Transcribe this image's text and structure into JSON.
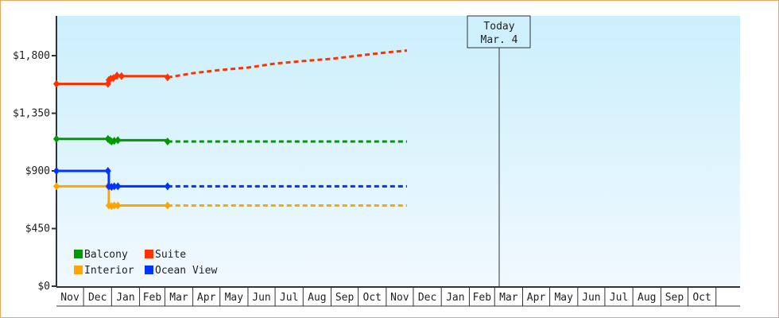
{
  "chart_data": {
    "type": "line",
    "title": "",
    "xlabel": "",
    "ylabel": "",
    "ylim": [
      0,
      2050
    ],
    "y_ticks": [
      "$0",
      "$450",
      "$900",
      "$1,350",
      "$1,800"
    ],
    "y_tick_values": [
      0,
      450,
      900,
      1350,
      1800
    ],
    "x_tick_labels": [
      "Nov",
      "Dec",
      "Jan",
      "Feb",
      "Mar",
      "Apr",
      "May",
      "Jun",
      "Jul",
      "Aug",
      "Sep",
      "Oct",
      "Nov",
      "Dec",
      "Jan",
      "Feb",
      "Mar",
      "Apr",
      "May",
      "Jun",
      "Jul",
      "Aug",
      "Sep",
      "Oct"
    ],
    "x_start": "Nov 1",
    "x_end": "Nov 24",
    "grid": false,
    "legend_position": "bottom-left",
    "today": {
      "line1": "Today",
      "line2": "Mar. 4",
      "date": "Mar 4"
    },
    "series": [
      {
        "name": "Balcony",
        "color": "#009900",
        "history": [
          [
            "Nov 1",
            1150
          ],
          [
            "Dec 28",
            1150
          ],
          [
            "Dec 30",
            1140
          ],
          [
            "Jan 1",
            1130
          ],
          [
            "Jan 4",
            1135
          ],
          [
            "Jan 8",
            1140
          ],
          [
            "Mar 4",
            1130
          ]
        ],
        "forecast": [
          [
            "Mar 4",
            1130
          ],
          [
            "Nov 24",
            1130
          ]
        ]
      },
      {
        "name": "Suite",
        "color": "#ff3300",
        "history": [
          [
            "Nov 1",
            1580
          ],
          [
            "Dec 28",
            1580
          ],
          [
            "Dec 29",
            1610
          ],
          [
            "Dec 31",
            1620
          ],
          [
            "Jan 3",
            1625
          ],
          [
            "Jan 7",
            1645
          ],
          [
            "Jan 12",
            1640
          ],
          [
            "Mar 4",
            1630
          ]
        ],
        "forecast": [
          [
            "Mar 4",
            1630
          ],
          [
            "Apr 1",
            1663
          ],
          [
            "May 1",
            1688
          ],
          [
            "Jun 1",
            1707
          ],
          [
            "Jul 1",
            1738
          ],
          [
            "Aug 1",
            1758
          ],
          [
            "Sep 1",
            1775
          ],
          [
            "Oct 1",
            1800
          ],
          [
            "Nov 1",
            1825
          ],
          [
            "Nov 24",
            1840
          ]
        ]
      },
      {
        "name": "Interior",
        "color": "#ffa500",
        "history": [
          [
            "Nov 1",
            780
          ],
          [
            "Dec 28",
            780
          ],
          [
            "Dec 29",
            630
          ],
          [
            "Jan 1",
            625
          ],
          [
            "Jan 4",
            630
          ],
          [
            "Jan 8",
            630
          ],
          [
            "Mar 4",
            630
          ]
        ],
        "forecast": [
          [
            "Mar 4",
            630
          ],
          [
            "Nov 24",
            630
          ]
        ]
      },
      {
        "name": "Ocean View",
        "color": "#0033ff",
        "history": [
          [
            "Nov 1",
            900
          ],
          [
            "Dec 28",
            900
          ],
          [
            "Dec 29",
            780
          ],
          [
            "Jan 1",
            775
          ],
          [
            "Jan 4",
            780
          ],
          [
            "Jan 8",
            780
          ],
          [
            "Mar 4",
            780
          ]
        ],
        "forecast": [
          [
            "Mar 4",
            780
          ],
          [
            "Nov 24",
            780
          ]
        ]
      }
    ]
  }
}
